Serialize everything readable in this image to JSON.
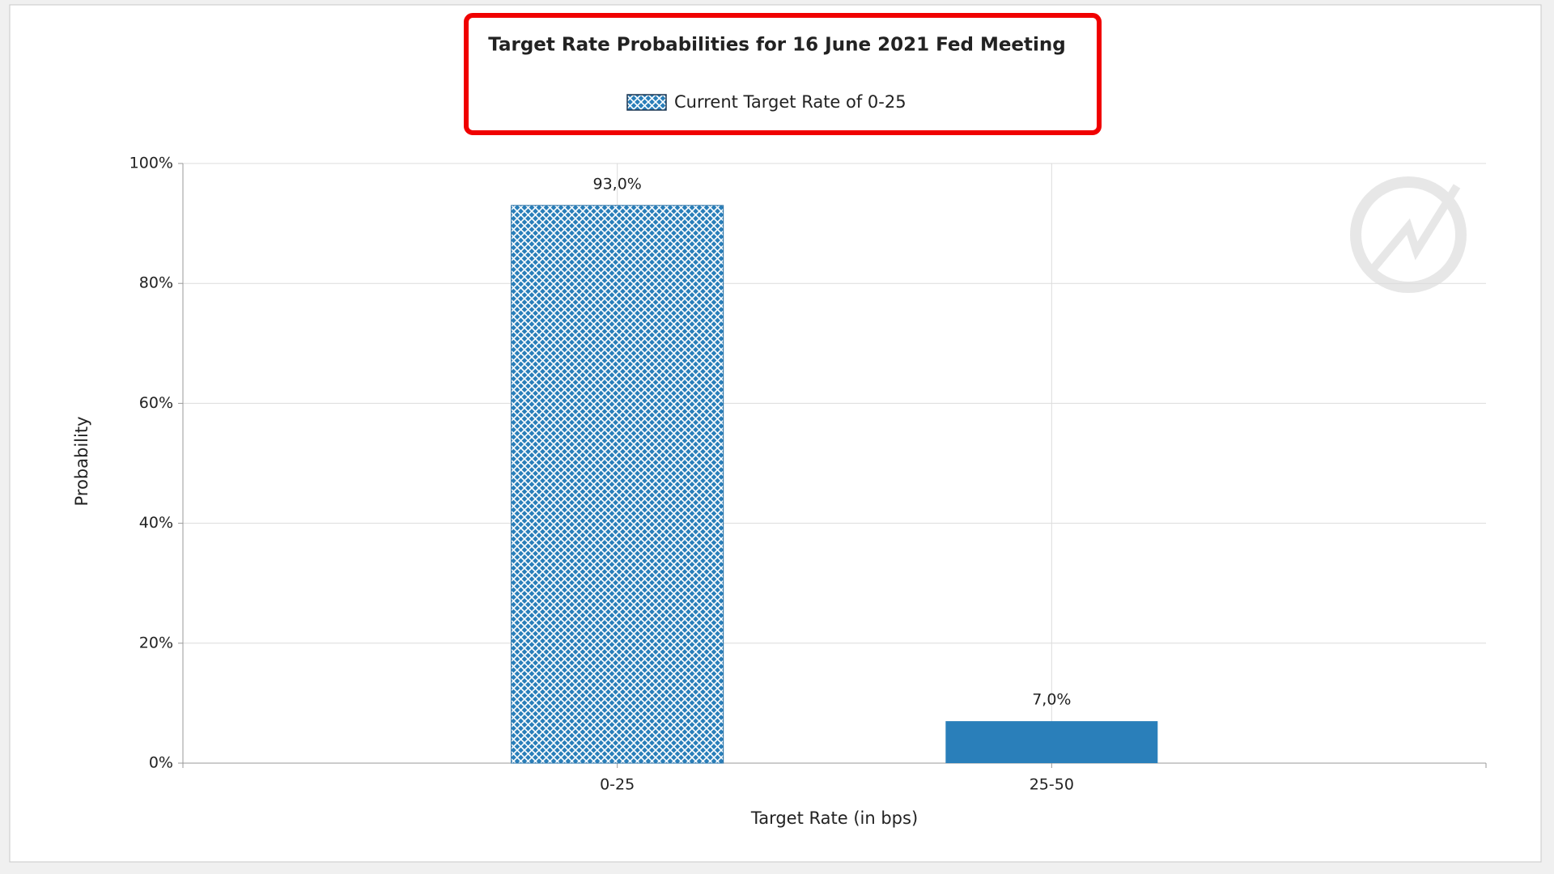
{
  "chart_data": {
    "type": "bar",
    "title": "Target Rate Probabilities for 16 June 2021 Fed Meeting",
    "x_label": "Target Rate (in bps)",
    "y_label": "Probability",
    "categories": [
      "0-25",
      "25-50"
    ],
    "series": [
      {
        "name": "Current Target Rate of 0-25",
        "color": "#2a7fba",
        "values": [
          93,
          7
        ],
        "value_labels": [
          "93,0%",
          "7,0%"
        ],
        "hatch": [
          true,
          false
        ]
      }
    ],
    "ylim": [
      0,
      100
    ],
    "yticks": [
      {
        "value": 0,
        "label": "0%"
      },
      {
        "value": 20,
        "label": "20%"
      },
      {
        "value": 40,
        "label": "40%"
      },
      {
        "value": 60,
        "label": "60%"
      },
      {
        "value": 80,
        "label": "80%"
      },
      {
        "value": 100,
        "label": "100%"
      }
    ],
    "grid": true
  }
}
